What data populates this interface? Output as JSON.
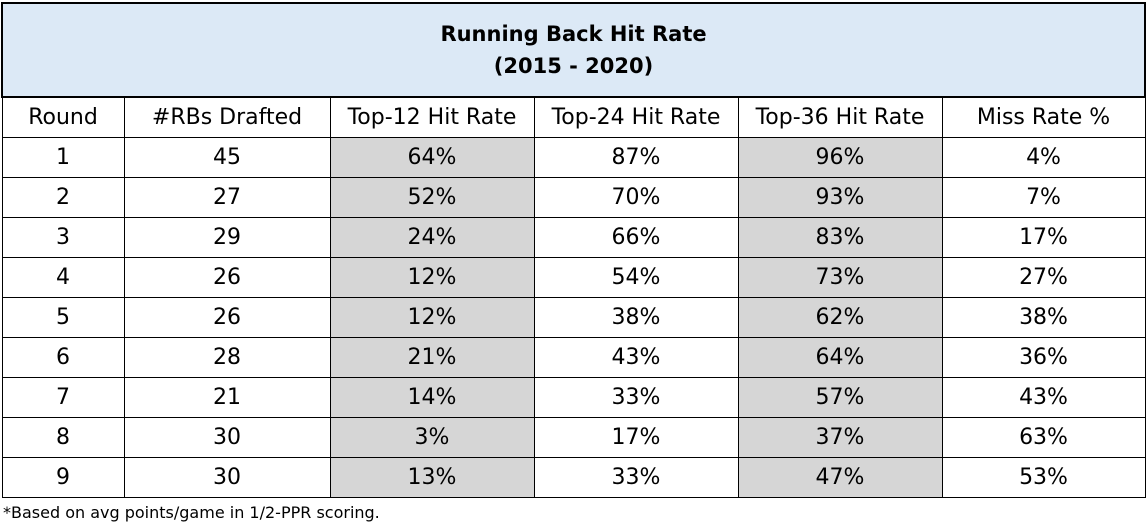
{
  "chart_data": {
    "type": "table",
    "title": "Running Back Hit Rate",
    "subtitle": "(2015 - 2020)",
    "columns": [
      "Round",
      "#RBs Drafted",
      "Top-12 Hit Rate",
      "Top-24 Hit Rate",
      "Top-36 Hit Rate",
      "Miss Rate %"
    ],
    "rows": [
      [
        "1",
        "45",
        "64%",
        "87%",
        "96%",
        "4%"
      ],
      [
        "2",
        "27",
        "52%",
        "70%",
        "93%",
        "7%"
      ],
      [
        "3",
        "29",
        "24%",
        "66%",
        "83%",
        "17%"
      ],
      [
        "4",
        "26",
        "12%",
        "54%",
        "73%",
        "27%"
      ],
      [
        "5",
        "26",
        "12%",
        "38%",
        "62%",
        "38%"
      ],
      [
        "6",
        "28",
        "21%",
        "43%",
        "64%",
        "36%"
      ],
      [
        "7",
        "21",
        "14%",
        "33%",
        "57%",
        "43%"
      ],
      [
        "8",
        "30",
        "3%",
        "17%",
        "37%",
        "63%"
      ],
      [
        "9",
        "30",
        "13%",
        "33%",
        "47%",
        "53%"
      ]
    ],
    "shaded_columns": [
      2,
      4
    ],
    "footnote": "*Based on avg points/game in 1/2-PPR scoring."
  },
  "colors": {
    "title_background": "#dce9f6",
    "shaded_cell": "#d6d6d6",
    "border": "#000000"
  }
}
